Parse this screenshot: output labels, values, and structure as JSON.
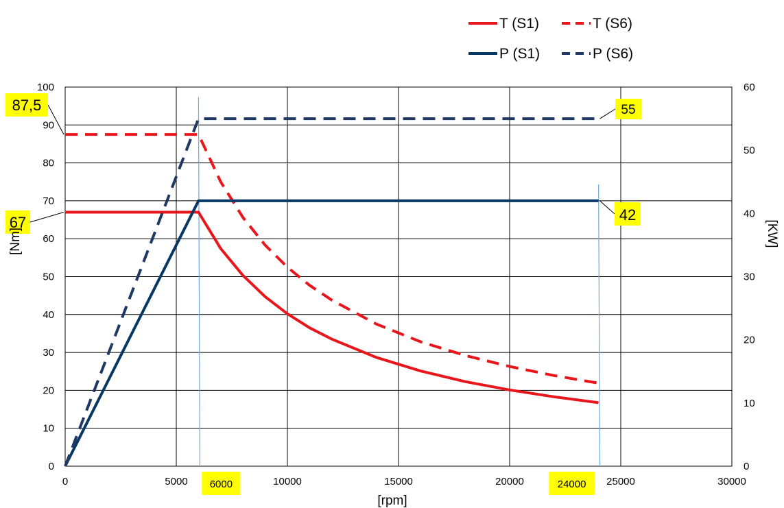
{
  "chart_data": {
    "type": "line",
    "xlabel": "[rpm]",
    "ylabel": "[Nm]",
    "y2label": "[KW]",
    "xlim": [
      0,
      30000
    ],
    "ylim": [
      0,
      100
    ],
    "y2lim": [
      0,
      60
    ],
    "x_ticks": [
      "0",
      "5000",
      "10000",
      "15000",
      "20000",
      "25000",
      "30000"
    ],
    "y_ticks": [
      "0",
      "10",
      "20",
      "30",
      "40",
      "50",
      "60",
      "70",
      "80",
      "90",
      "100"
    ],
    "y2_ticks": [
      "0",
      "10",
      "20",
      "30",
      "40",
      "50",
      "60"
    ],
    "grid": true,
    "legend_position": "top-right",
    "series": [
      {
        "name": "T (S1)",
        "axis": "left",
        "color": "#e8161b",
        "dash": "solid",
        "x": [
          0,
          6000,
          7000,
          8000,
          9000,
          10000,
          11000,
          12000,
          14000,
          16000,
          18000,
          20000,
          22000,
          24000
        ],
        "y": [
          67,
          67,
          57.4,
          50.3,
          44.7,
          40.2,
          36.5,
          33.5,
          28.7,
          25.1,
          22.3,
          20.1,
          18.3,
          16.75
        ]
      },
      {
        "name": "T (S6)",
        "axis": "left",
        "color": "#e8161b",
        "dash": "dashed",
        "x": [
          0,
          6000,
          7000,
          8000,
          9000,
          10000,
          11000,
          12000,
          14000,
          16000,
          18000,
          20000,
          22000,
          24000
        ],
        "y": [
          87.5,
          87.5,
          75,
          65.6,
          58.3,
          52.5,
          47.7,
          43.8,
          37.5,
          32.8,
          29.2,
          26.3,
          23.9,
          21.9
        ]
      },
      {
        "name": "P (S1)",
        "axis": "right",
        "color": "#073763",
        "dash": "solid",
        "x": [
          0,
          6000,
          24000
        ],
        "y": [
          0,
          42,
          42
        ]
      },
      {
        "name": "P (S6)",
        "axis": "right",
        "color": "#1f3864",
        "dash": "dashed",
        "x": [
          0,
          6000,
          24000
        ],
        "y": [
          0,
          55,
          55
        ]
      }
    ],
    "markers": [
      {
        "x": 6000,
        "label": "6000"
      },
      {
        "x": 24000,
        "label": "24000"
      }
    ],
    "callouts": [
      {
        "label": "87,5",
        "axis": "left",
        "x": 0,
        "y": 87.5
      },
      {
        "label": "67",
        "axis": "left",
        "x": 0,
        "y": 67
      },
      {
        "label": "55",
        "axis": "right",
        "x": 24000,
        "y": 55
      },
      {
        "label": "42",
        "axis": "right",
        "x": 24000,
        "y": 42
      }
    ],
    "highlight_color": "#ffff00"
  }
}
